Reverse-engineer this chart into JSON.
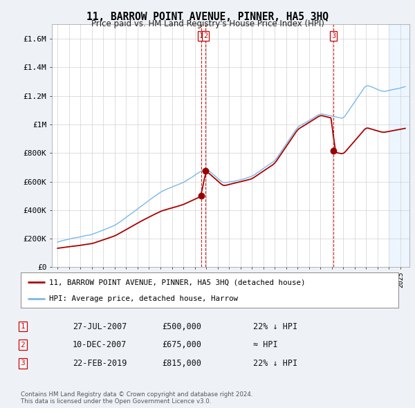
{
  "title": "11, BARROW POINT AVENUE, PINNER, HA5 3HQ",
  "subtitle": "Price paid vs. HM Land Registry's House Price Index (HPI)",
  "ylim": [
    0,
    1700000
  ],
  "yticks": [
    0,
    200000,
    400000,
    600000,
    800000,
    1000000,
    1200000,
    1400000,
    1600000
  ],
  "ytick_labels": [
    "£0",
    "£200K",
    "£400K",
    "£600K",
    "£800K",
    "£1M",
    "£1.2M",
    "£1.4M",
    "£1.6M"
  ],
  "hpi_color": "#7ab8e8",
  "price_color": "#aa0000",
  "vline_color": "#cc0000",
  "marker_color": "#990000",
  "transactions": [
    {
      "date_num": 2007.57,
      "price": 500000,
      "label": "1"
    },
    {
      "date_num": 2007.94,
      "price": 675000,
      "label": "2"
    },
    {
      "date_num": 2019.14,
      "price": 815000,
      "label": "3"
    }
  ],
  "transaction_table": [
    {
      "num": "1",
      "date": "27-JUL-2007",
      "price": "£500,000",
      "hpi": "22% ↓ HPI"
    },
    {
      "num": "2",
      "date": "10-DEC-2007",
      "price": "£675,000",
      "hpi": "≈ HPI"
    },
    {
      "num": "3",
      "date": "22-FEB-2019",
      "price": "£815,000",
      "hpi": "22% ↓ HPI"
    }
  ],
  "legend_line1": "11, BARROW POINT AVENUE, PINNER, HA5 3HQ (detached house)",
  "legend_line2": "HPI: Average price, detached house, Harrow",
  "footer": "Contains HM Land Registry data © Crown copyright and database right 2024.\nThis data is licensed under the Open Government Licence v3.0.",
  "background_color": "#eef2f7",
  "plot_bg": "#ffffff",
  "shaded_bg": "#ddeeff"
}
